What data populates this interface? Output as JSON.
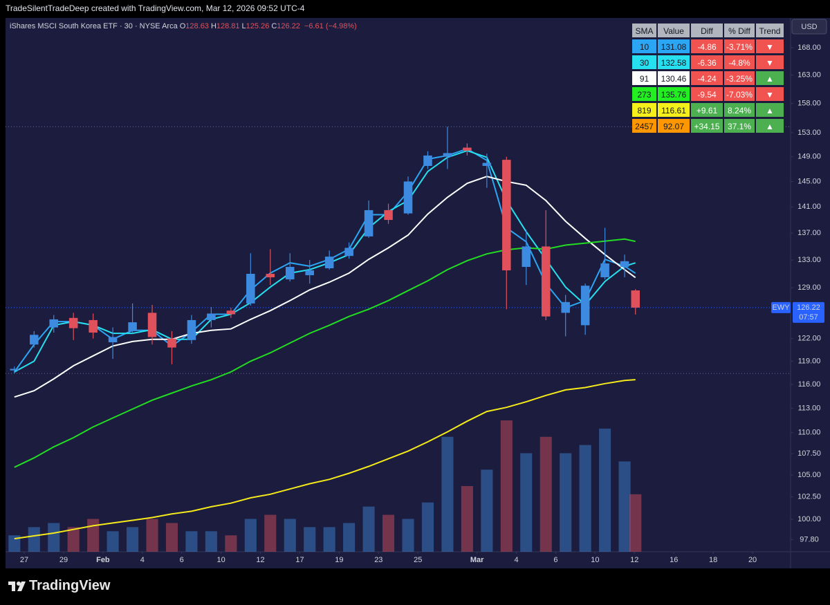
{
  "watermark": "TradeSilentTradeDeep created with TradingView.com, Mar 12, 2026 09:52 UTC-4",
  "brand": "TradingView",
  "chart_data": {
    "type": "candlestick",
    "title": "iShares MSCI South Korea ETF · 30 · NYSE Arca",
    "ohlc_labels": [
      "O",
      "H",
      "L",
      "C"
    ],
    "change": "−6.61 (−4.98%)",
    "currency": "USD",
    "symbol": "EWY",
    "countdown": "07:57",
    "x": [
      -0.5,
      0.5,
      1.5,
      2.5,
      3.5,
      4.5,
      5.5,
      6.5,
      7.5,
      8.5,
      9.5,
      10.5,
      11.5,
      12.5,
      13.5,
      14.5,
      15.5,
      16.5,
      17.5,
      18.5,
      19.5,
      20.5,
      21.5,
      22.5,
      23.5,
      24.5,
      25.5,
      26.5,
      27.5,
      28.5,
      29.5,
      30.5,
      31.05
    ],
    "candles": {
      "open": [
        117.8,
        121.2,
        123.5,
        124.8,
        124.5,
        121.5,
        123.0,
        125.5,
        122.0,
        121.8,
        124.5,
        125.8,
        126.8,
        131.0,
        130.2,
        130.8,
        131.8,
        133.6,
        136.5,
        140.5,
        140.0,
        147.5,
        149.0,
        150.5,
        147.5,
        148.5,
        132.0,
        135.0,
        125.5,
        123.8,
        130.5,
        132.0,
        128.63
      ],
      "high": [
        118.3,
        123.0,
        125.2,
        125.5,
        125.4,
        123.5,
        126.8,
        126.6,
        123.0,
        125.2,
        126.3,
        126.2,
        134.0,
        134.6,
        134.0,
        133.0,
        134.4,
        135.6,
        142.0,
        141.5,
        145.8,
        149.9,
        154.0,
        151.2,
        149.5,
        149.0,
        137.5,
        140.5,
        128.0,
        129.6,
        137.8,
        133.8,
        128.81
      ],
      "low": [
        117.4,
        120.8,
        122.8,
        121.8,
        122.0,
        119.3,
        122.7,
        121.2,
        118.6,
        121.3,
        123.5,
        124.8,
        126.5,
        129.4,
        129.9,
        129.6,
        131.6,
        133.2,
        136.3,
        138.4,
        139.8,
        147.0,
        147.0,
        149.2,
        144.0,
        126.0,
        129.4,
        124.5,
        122.3,
        122.5,
        130.2,
        130.5,
        125.26
      ],
      "close": [
        118.0,
        122.5,
        124.6,
        123.4,
        122.8,
        122.2,
        124.2,
        122.2,
        120.8,
        124.5,
        125.4,
        125.3,
        131.0,
        130.5,
        132.0,
        131.5,
        133.5,
        134.8,
        140.5,
        139.0,
        145.0,
        149.2,
        149.6,
        150.0,
        148.0,
        131.5,
        135.0,
        125.0,
        127.0,
        129.3,
        132.5,
        132.83,
        126.22
      ]
    },
    "up_color": "#3d8be0",
    "down_color": "#e0515b",
    "volume": [
      20,
      30,
      35,
      30,
      40,
      25,
      30,
      40,
      35,
      25,
      25,
      20,
      40,
      45,
      40,
      30,
      30,
      35,
      55,
      45,
      40,
      60,
      140,
      80,
      100,
      160,
      120,
      140,
      120,
      130,
      150,
      110,
      70
    ],
    "series": [
      {
        "color": "#2aa6f5",
        "values": [
          117.6,
          121.2,
          124.3,
          124.3,
          123.8,
          121.9,
          123.1,
          123.1,
          121.0,
          122.9,
          125.3,
          125.3,
          128.7,
          131.1,
          132.6,
          132.1,
          133.1,
          134.6,
          139.8,
          139.8,
          143.4,
          148.6,
          149.2,
          150.3,
          148.4,
          137.8,
          135.7,
          129.6,
          126.2,
          127.2,
          133.1,
          132.1,
          131.08
        ]
      },
      {
        "color": "#26e0f0",
        "values": [
          117.6,
          119.0,
          123.8,
          124.3,
          123.8,
          122.7,
          122.7,
          123.2,
          121.9,
          121.9,
          124.6,
          125.3,
          126.9,
          129.1,
          131.1,
          131.6,
          132.6,
          133.8,
          137.8,
          140.3,
          142.0,
          146.6,
          148.9,
          150.0,
          148.9,
          142.0,
          137.2,
          133.1,
          129.1,
          126.6,
          129.9,
          132.1,
          132.58
        ]
      },
      {
        "color": "#ffffff",
        "values": [
          114.4,
          115.2,
          116.7,
          118.4,
          119.7,
          121.0,
          121.6,
          121.9,
          121.9,
          122.7,
          123.1,
          123.3,
          124.6,
          125.8,
          127.2,
          128.7,
          129.8,
          131.1,
          133.1,
          134.8,
          136.7,
          139.9,
          142.5,
          144.7,
          145.8,
          145.0,
          144.4,
          142.0,
          138.8,
          136.2,
          133.8,
          131.6,
          130.46
        ]
      },
      {
        "color": "#22dd22",
        "values": [
          105.9,
          107.0,
          108.3,
          109.4,
          110.7,
          111.8,
          112.9,
          114.0,
          114.9,
          115.8,
          116.6,
          117.6,
          119.0,
          120.1,
          121.4,
          122.7,
          123.8,
          125.0,
          126.0,
          127.2,
          128.6,
          130.0,
          131.6,
          132.9,
          133.9,
          134.5,
          134.8,
          134.6,
          135.2,
          135.5,
          135.8,
          136.1,
          135.76
        ]
      },
      {
        "color": "#f5ea1a",
        "values": [
          97.9,
          98.2,
          98.5,
          98.9,
          99.3,
          99.6,
          99.9,
          100.2,
          100.6,
          100.9,
          101.4,
          101.8,
          102.4,
          102.8,
          103.4,
          104.0,
          104.5,
          105.2,
          106.0,
          106.9,
          107.8,
          108.9,
          110.1,
          111.4,
          112.6,
          113.1,
          113.8,
          114.6,
          115.3,
          115.6,
          116.1,
          116.5,
          116.61
        ]
      }
    ],
    "ylim": [
      96.5,
      173.3
    ],
    "log_scale": true,
    "yticks": [
      {
        "value": 168,
        "label": "168.00"
      },
      {
        "value": 163,
        "label": "163.00"
      },
      {
        "value": 158,
        "label": "158.00"
      },
      {
        "value": 153,
        "label": "153.00"
      },
      {
        "value": 149,
        "label": "149.00"
      },
      {
        "value": 145,
        "label": "145.00"
      },
      {
        "value": 141,
        "label": "141.00"
      },
      {
        "value": 137,
        "label": "137.00"
      },
      {
        "value": 133,
        "label": "133.00"
      },
      {
        "value": 129,
        "label": "129.00"
      },
      {
        "value": 122,
        "label": "122.00"
      },
      {
        "value": 119,
        "label": "119.00"
      },
      {
        "value": 116,
        "label": "116.00"
      },
      {
        "value": 113,
        "label": "113.00"
      },
      {
        "value": 110,
        "label": "110.00"
      },
      {
        "value": 107.5,
        "label": "107.50"
      },
      {
        "value": 105,
        "label": "105.00"
      },
      {
        "value": 102.5,
        "label": "102.50"
      },
      {
        "value": 100,
        "label": "100.00"
      },
      {
        "value": 97.8,
        "label": "97.80"
      }
    ],
    "xlim": [
      -0.95,
      38.93
    ],
    "xticks": [
      {
        "value": 0,
        "label": "27"
      },
      {
        "value": 2,
        "label": "29"
      },
      {
        "value": 4,
        "label": "Feb"
      },
      {
        "value": 6,
        "label": "4"
      },
      {
        "value": 8,
        "label": "6"
      },
      {
        "value": 10,
        "label": "10"
      },
      {
        "value": 12,
        "label": "12"
      },
      {
        "value": 14,
        "label": "17"
      },
      {
        "value": 16,
        "label": "19"
      },
      {
        "value": 18,
        "label": "23"
      },
      {
        "value": 20,
        "label": "25"
      },
      {
        "value": 23,
        "label": "Mar"
      },
      {
        "value": 25,
        "label": "4"
      },
      {
        "value": 27,
        "label": "6"
      },
      {
        "value": 29,
        "label": "10"
      },
      {
        "value": 31,
        "label": "12"
      },
      {
        "value": 33,
        "label": "16"
      },
      {
        "value": 35,
        "label": "18"
      },
      {
        "value": 37,
        "label": "20"
      }
    ],
    "grid": false
  },
  "table": {
    "header": [
      "SMA",
      "Value",
      "Diff",
      "% Diff",
      "Trend"
    ],
    "rows": [
      {
        "cells": [
          "10",
          "131.08",
          "-4.86",
          "-3.71%",
          "▼"
        ],
        "color": "#2aa6f5",
        "diff_color": "#f05350",
        "trend_color": "#f05350"
      },
      {
        "cells": [
          "30",
          "132.58",
          "-6.36",
          "-4.8%",
          "▼"
        ],
        "color": "#26e0f0",
        "diff_color": "#f05350",
        "trend_color": "#f05350"
      },
      {
        "cells": [
          "91",
          "130.46",
          "-4.24",
          "-3.25%",
          "▲"
        ],
        "color": "#ffffff",
        "diff_color": "#f05350",
        "trend_color": "#4caf50"
      },
      {
        "cells": [
          "273",
          "135.76",
          "-9.54",
          "-7.03%",
          "▼"
        ],
        "color": "#22ee22",
        "diff_color": "#f05350",
        "trend_color": "#f05350"
      },
      {
        "cells": [
          "819",
          "116.61",
          "+9.61",
          "8.24%",
          "▲"
        ],
        "color": "#f5f01a",
        "diff_color": "#4caf50",
        "trend_color": "#4caf50"
      },
      {
        "cells": [
          "2457",
          "92.07",
          "+34.15",
          "37.1%",
          "▲"
        ],
        "color": "#ff9800",
        "diff_color": "#4caf50",
        "trend_color": "#4caf50"
      }
    ]
  }
}
